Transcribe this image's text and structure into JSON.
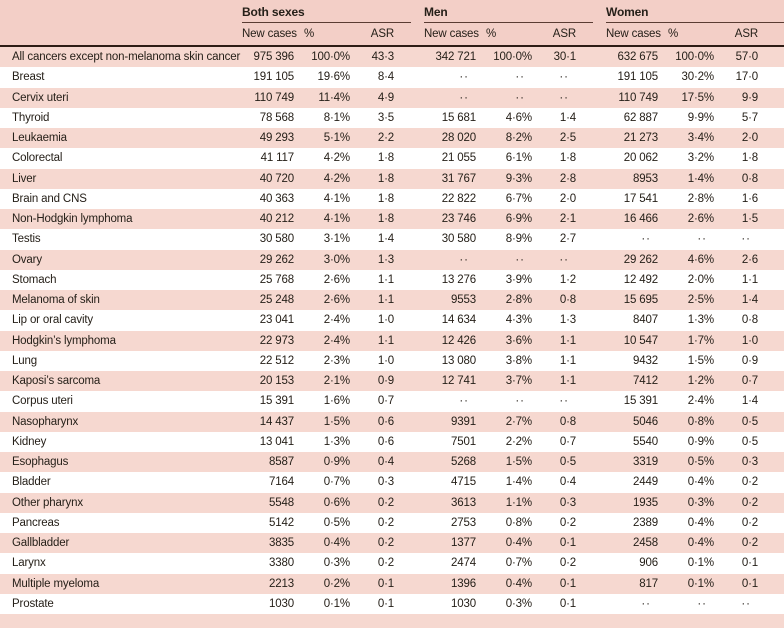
{
  "colors": {
    "header_pink": "#f3cfc7",
    "row_pink": "#f6d8d0",
    "dark_rule": "#2e1c15",
    "group_rule": "#5a3c33",
    "text": "#262019"
  },
  "table": {
    "groups": [
      {
        "label": "Both sexes"
      },
      {
        "label": "Men"
      },
      {
        "label": "Women"
      }
    ],
    "subheaders": {
      "new_cases": "New cases",
      "percent": "%",
      "asr": "ASR"
    },
    "missing_marker": "··",
    "rows": [
      {
        "label": "All cancers except non-melanoma skin cancer",
        "both": {
          "new_cases": "975 396",
          "percent": "100·0%",
          "asr": "43·3"
        },
        "men": {
          "new_cases": "342 721",
          "percent": "100·0%",
          "asr": "30·1"
        },
        "women": {
          "new_cases": "632 675",
          "percent": "100·0%",
          "asr": "57·0"
        }
      },
      {
        "label": "Breast",
        "both": {
          "new_cases": "191 105",
          "percent": "19·6%",
          "asr": "8·4"
        },
        "men": {
          "new_cases": "··",
          "percent": "··",
          "asr": "··"
        },
        "women": {
          "new_cases": "191 105",
          "percent": "30·2%",
          "asr": "17·0"
        }
      },
      {
        "label": "Cervix uteri",
        "both": {
          "new_cases": "110 749",
          "percent": "11·4%",
          "asr": "4·9"
        },
        "men": {
          "new_cases": "··",
          "percent": "··",
          "asr": "··"
        },
        "women": {
          "new_cases": "110 749",
          "percent": "17·5%",
          "asr": "9·9"
        }
      },
      {
        "label": "Thyroid",
        "both": {
          "new_cases": "78 568",
          "percent": "8·1%",
          "asr": "3·5"
        },
        "men": {
          "new_cases": "15 681",
          "percent": "4·6%",
          "asr": "1·4"
        },
        "women": {
          "new_cases": "62 887",
          "percent": "9·9%",
          "asr": "5·7"
        }
      },
      {
        "label": "Leukaemia",
        "both": {
          "new_cases": "49 293",
          "percent": "5·1%",
          "asr": "2·2"
        },
        "men": {
          "new_cases": "28 020",
          "percent": "8·2%",
          "asr": "2·5"
        },
        "women": {
          "new_cases": "21 273",
          "percent": "3·4%",
          "asr": "2·0"
        }
      },
      {
        "label": "Colorectal",
        "both": {
          "new_cases": "41 117",
          "percent": "4·2%",
          "asr": "1·8"
        },
        "men": {
          "new_cases": "21 055",
          "percent": "6·1%",
          "asr": "1·8"
        },
        "women": {
          "new_cases": "20 062",
          "percent": "3·2%",
          "asr": "1·8"
        }
      },
      {
        "label": "Liver",
        "both": {
          "new_cases": "40 720",
          "percent": "4·2%",
          "asr": "1·8"
        },
        "men": {
          "new_cases": "31 767",
          "percent": "9·3%",
          "asr": "2·8"
        },
        "women": {
          "new_cases": "8953",
          "percent": "1·4%",
          "asr": "0·8"
        }
      },
      {
        "label": "Brain and CNS",
        "both": {
          "new_cases": "40 363",
          "percent": "4·1%",
          "asr": "1·8"
        },
        "men": {
          "new_cases": "22 822",
          "percent": "6·7%",
          "asr": "2·0"
        },
        "women": {
          "new_cases": "17 541",
          "percent": "2·8%",
          "asr": "1·6"
        }
      },
      {
        "label": "Non-Hodgkin lymphoma",
        "both": {
          "new_cases": "40 212",
          "percent": "4·1%",
          "asr": "1·8"
        },
        "men": {
          "new_cases": "23 746",
          "percent": "6·9%",
          "asr": "2·1"
        },
        "women": {
          "new_cases": "16 466",
          "percent": "2·6%",
          "asr": "1·5"
        }
      },
      {
        "label": "Testis",
        "both": {
          "new_cases": "30 580",
          "percent": "3·1%",
          "asr": "1·4"
        },
        "men": {
          "new_cases": "30 580",
          "percent": "8·9%",
          "asr": "2·7"
        },
        "women": {
          "new_cases": "··",
          "percent": "··",
          "asr": "··"
        }
      },
      {
        "label": "Ovary",
        "both": {
          "new_cases": "29 262",
          "percent": "3·0%",
          "asr": "1·3"
        },
        "men": {
          "new_cases": "··",
          "percent": "··",
          "asr": "··"
        },
        "women": {
          "new_cases": "29 262",
          "percent": "4·6%",
          "asr": "2·6"
        }
      },
      {
        "label": "Stomach",
        "both": {
          "new_cases": "25 768",
          "percent": "2·6%",
          "asr": "1·1"
        },
        "men": {
          "new_cases": "13 276",
          "percent": "3·9%",
          "asr": "1·2"
        },
        "women": {
          "new_cases": "12 492",
          "percent": "2·0%",
          "asr": "1·1"
        }
      },
      {
        "label": "Melanoma of skin",
        "both": {
          "new_cases": "25 248",
          "percent": "2·6%",
          "asr": "1·1"
        },
        "men": {
          "new_cases": "9553",
          "percent": "2·8%",
          "asr": "0·8"
        },
        "women": {
          "new_cases": "15 695",
          "percent": "2·5%",
          "asr": "1·4"
        }
      },
      {
        "label": "Lip or oral cavity",
        "both": {
          "new_cases": "23 041",
          "percent": "2·4%",
          "asr": "1·0"
        },
        "men": {
          "new_cases": "14 634",
          "percent": "4·3%",
          "asr": "1·3"
        },
        "women": {
          "new_cases": "8407",
          "percent": "1·3%",
          "asr": "0·8"
        }
      },
      {
        "label": "Hodgkin’s lymphoma",
        "both": {
          "new_cases": "22 973",
          "percent": "2·4%",
          "asr": "1·1"
        },
        "men": {
          "new_cases": "12 426",
          "percent": "3·6%",
          "asr": "1·1"
        },
        "women": {
          "new_cases": "10 547",
          "percent": "1·7%",
          "asr": "1·0"
        }
      },
      {
        "label": "Lung",
        "both": {
          "new_cases": "22 512",
          "percent": "2·3%",
          "asr": "1·0"
        },
        "men": {
          "new_cases": "13 080",
          "percent": "3·8%",
          "asr": "1·1"
        },
        "women": {
          "new_cases": "9432",
          "percent": "1·5%",
          "asr": "0·9"
        }
      },
      {
        "label": "Kaposi’s sarcoma",
        "both": {
          "new_cases": "20 153",
          "percent": "2·1%",
          "asr": "0·9"
        },
        "men": {
          "new_cases": "12 741",
          "percent": "3·7%",
          "asr": "1·1"
        },
        "women": {
          "new_cases": "7412",
          "percent": "1·2%",
          "asr": "0·7"
        }
      },
      {
        "label": "Corpus uteri",
        "both": {
          "new_cases": "15 391",
          "percent": "1·6%",
          "asr": "0·7"
        },
        "men": {
          "new_cases": "··",
          "percent": "··",
          "asr": "··"
        },
        "women": {
          "new_cases": "15 391",
          "percent": "2·4%",
          "asr": "1·4"
        }
      },
      {
        "label": "Nasopharynx",
        "both": {
          "new_cases": "14 437",
          "percent": "1·5%",
          "asr": "0·6"
        },
        "men": {
          "new_cases": "9391",
          "percent": "2·7%",
          "asr": "0·8"
        },
        "women": {
          "new_cases": "5046",
          "percent": "0·8%",
          "asr": "0·5"
        }
      },
      {
        "label": "Kidney",
        "both": {
          "new_cases": "13 041",
          "percent": "1·3%",
          "asr": "0·6"
        },
        "men": {
          "new_cases": "7501",
          "percent": "2·2%",
          "asr": "0·7"
        },
        "women": {
          "new_cases": "5540",
          "percent": "0·9%",
          "asr": "0·5"
        }
      },
      {
        "label": "Esophagus",
        "both": {
          "new_cases": "8587",
          "percent": "0·9%",
          "asr": "0·4"
        },
        "men": {
          "new_cases": "5268",
          "percent": "1·5%",
          "asr": "0·5"
        },
        "women": {
          "new_cases": "3319",
          "percent": "0·5%",
          "asr": "0·3"
        }
      },
      {
        "label": "Bladder",
        "both": {
          "new_cases": "7164",
          "percent": "0·7%",
          "asr": "0·3"
        },
        "men": {
          "new_cases": "4715",
          "percent": "1·4%",
          "asr": "0·4"
        },
        "women": {
          "new_cases": "2449",
          "percent": "0·4%",
          "asr": "0·2"
        }
      },
      {
        "label": "Other pharynx",
        "both": {
          "new_cases": "5548",
          "percent": "0·6%",
          "asr": "0·2"
        },
        "men": {
          "new_cases": "3613",
          "percent": "1·1%",
          "asr": "0·3"
        },
        "women": {
          "new_cases": "1935",
          "percent": "0·3%",
          "asr": "0·2"
        }
      },
      {
        "label": "Pancreas",
        "both": {
          "new_cases": "5142",
          "percent": "0·5%",
          "asr": "0·2"
        },
        "men": {
          "new_cases": "2753",
          "percent": "0·8%",
          "asr": "0·2"
        },
        "women": {
          "new_cases": "2389",
          "percent": "0·4%",
          "asr": "0·2"
        }
      },
      {
        "label": "Gallbladder",
        "both": {
          "new_cases": "3835",
          "percent": "0·4%",
          "asr": "0·2"
        },
        "men": {
          "new_cases": "1377",
          "percent": "0·4%",
          "asr": "0·1"
        },
        "women": {
          "new_cases": "2458",
          "percent": "0·4%",
          "asr": "0·2"
        }
      },
      {
        "label": "Larynx",
        "both": {
          "new_cases": "3380",
          "percent": "0·3%",
          "asr": "0·2"
        },
        "men": {
          "new_cases": "2474",
          "percent": "0·7%",
          "asr": "0·2"
        },
        "women": {
          "new_cases": "906",
          "percent": "0·1%",
          "asr": "0·1"
        }
      },
      {
        "label": "Multiple myeloma",
        "both": {
          "new_cases": "2213",
          "percent": "0·2%",
          "asr": "0·1"
        },
        "men": {
          "new_cases": "1396",
          "percent": "0·4%",
          "asr": "0·1"
        },
        "women": {
          "new_cases": "817",
          "percent": "0·1%",
          "asr": "0·1"
        }
      },
      {
        "label": "Prostate",
        "both": {
          "new_cases": "1030",
          "percent": "0·1%",
          "asr": "0·1"
        },
        "men": {
          "new_cases": "1030",
          "percent": "0·3%",
          "asr": "0·1"
        },
        "women": {
          "new_cases": "··",
          "percent": "··",
          "asr": "··"
        }
      }
    ]
  }
}
